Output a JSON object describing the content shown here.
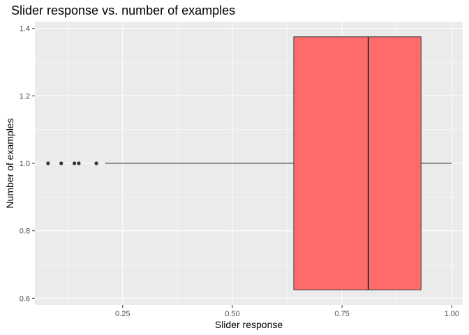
{
  "chart_data": {
    "type": "boxplot",
    "title": "Slider response vs. number of examples",
    "xlabel": "Slider response",
    "ylabel": "Number of examples",
    "x_ticks": [
      0.25,
      0.5,
      0.75,
      1.0
    ],
    "x_tick_labels": [
      "0.25",
      "0.50",
      "0.75",
      "1.00"
    ],
    "y_ticks": [
      0.6,
      0.8,
      1.0,
      1.2,
      1.4
    ],
    "y_tick_labels": [
      "0.6",
      "0.8",
      "1.0",
      "1.2",
      "1.4"
    ],
    "xlim": [
      0.05,
      1.025
    ],
    "ylim": [
      0.58,
      1.42
    ],
    "grid": true,
    "box": {
      "group": 1.0,
      "whisker_low": 0.21,
      "q1": 0.64,
      "median": 0.81,
      "q3": 0.93,
      "whisker_high": 1.0,
      "box_y_low": 0.625,
      "box_y_high": 1.375,
      "fill": "#ff6b6b"
    },
    "outliers": [
      {
        "x": 0.08,
        "y": 1.0
      },
      {
        "x": 0.11,
        "y": 1.0
      },
      {
        "x": 0.14,
        "y": 1.0
      },
      {
        "x": 0.15,
        "y": 1.0
      },
      {
        "x": 0.19,
        "y": 1.0
      }
    ]
  },
  "colors": {
    "panel_bg": "#ebebeb",
    "grid_major": "#ffffff",
    "box_fill": "#ff6b6b",
    "box_stroke": "#333333",
    "point": "#333333"
  }
}
